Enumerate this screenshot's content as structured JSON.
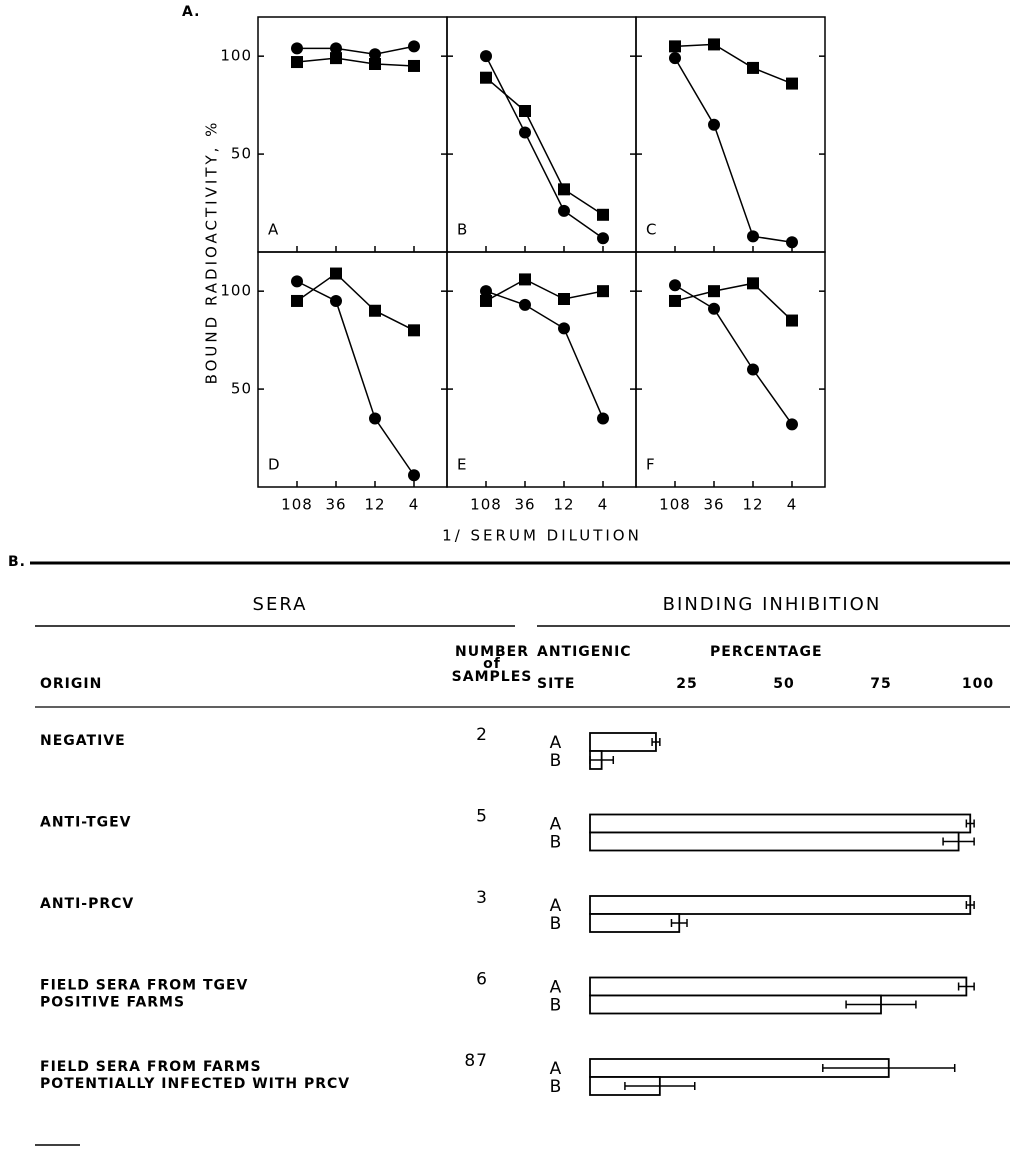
{
  "figure_a_label": "A.",
  "figure_b_label": "B.",
  "y_label": "BOUND RADIOACTIVITY, %",
  "x_label": "1/ SERUM DILUTION",
  "table_b": {
    "sera": "SERA",
    "binding": "BINDING INHIBITION",
    "origin": "ORIGIN",
    "number": [
      "NUMBER",
      "of",
      "SAMPLES"
    ],
    "site": [
      "ANTIGENIC",
      "SITE"
    ]
  },
  "chart_data": [
    {
      "type": "line",
      "title": "A",
      "categories": [
        "108",
        "36",
        "12",
        "4"
      ],
      "ylim": [
        0,
        120
      ],
      "yticks": [
        50,
        100
      ],
      "series": [
        {
          "marker": "circle",
          "color": "#000",
          "values": [
            104,
            104,
            101,
            105
          ]
        },
        {
          "marker": "square",
          "color": "#000",
          "values": [
            97,
            99,
            96,
            95
          ]
        }
      ]
    },
    {
      "type": "line",
      "title": "B",
      "categories": [
        "108",
        "36",
        "12",
        "4"
      ],
      "ylim": [
        0,
        120
      ],
      "yticks": [
        50,
        100
      ],
      "series": [
        {
          "marker": "circle",
          "color": "#000",
          "values": [
            100,
            61,
            21,
            7
          ]
        },
        {
          "marker": "square",
          "color": "#000",
          "values": [
            89,
            72,
            32,
            19
          ]
        }
      ]
    },
    {
      "type": "line",
      "title": "C",
      "categories": [
        "108",
        "36",
        "12",
        "4"
      ],
      "ylim": [
        0,
        120
      ],
      "yticks": [
        50,
        100
      ],
      "series": [
        {
          "marker": "circle",
          "color": "#000",
          "values": [
            99,
            65,
            8,
            5
          ]
        },
        {
          "marker": "square",
          "color": "#000",
          "values": [
            105,
            106,
            94,
            86
          ]
        }
      ]
    },
    {
      "type": "line",
      "title": "D",
      "categories": [
        "108",
        "36",
        "12",
        "4"
      ],
      "ylim": [
        0,
        120
      ],
      "yticks": [
        50,
        100
      ],
      "series": [
        {
          "marker": "circle",
          "color": "#000",
          "values": [
            105,
            95,
            35,
            6
          ]
        },
        {
          "marker": "square",
          "color": "#000",
          "values": [
            95,
            109,
            90,
            80
          ]
        }
      ]
    },
    {
      "type": "line",
      "title": "E",
      "categories": [
        "108",
        "36",
        "12",
        "4"
      ],
      "ylim": [
        0,
        120
      ],
      "yticks": [
        50,
        100
      ],
      "series": [
        {
          "marker": "circle",
          "color": "#000",
          "values": [
            100,
            93,
            81,
            35
          ]
        },
        {
          "marker": "square",
          "color": "#000",
          "values": [
            95,
            106,
            96,
            100
          ]
        }
      ]
    },
    {
      "type": "line",
      "title": "F",
      "categories": [
        "108",
        "36",
        "12",
        "4"
      ],
      "ylim": [
        0,
        120
      ],
      "yticks": [
        50,
        100
      ],
      "series": [
        {
          "marker": "circle",
          "color": "#000",
          "values": [
            103,
            91,
            60,
            32
          ]
        },
        {
          "marker": "square",
          "color": "#000",
          "values": [
            95,
            100,
            104,
            85
          ]
        }
      ]
    },
    {
      "type": "hbar",
      "x_label": "PERCENTAGE",
      "xlim": [
        0,
        100
      ],
      "xticks": [
        25,
        50,
        75,
        100
      ],
      "categories": [
        "NEGATIVE",
        "ANTI-TGEV",
        "ANTI-PRCV",
        "FIELD SERA FROM TGEV\nPOSITIVE FARMS",
        "FIELD SERA FROM FARMS\nPOTENTIALLY INFECTED WITH PRCV"
      ],
      "samples": [
        2,
        5,
        3,
        6,
        87
      ],
      "series": [
        {
          "name": "A",
          "color": "#fff",
          "values": [
            17,
            98,
            98,
            97,
            77
          ],
          "errors": [
            1,
            1,
            1,
            2,
            17
          ]
        },
        {
          "name": "B",
          "color": "#fff",
          "values": [
            3,
            95,
            23,
            75,
            18
          ],
          "errors": [
            3,
            4,
            2,
            9,
            9
          ]
        }
      ]
    }
  ]
}
